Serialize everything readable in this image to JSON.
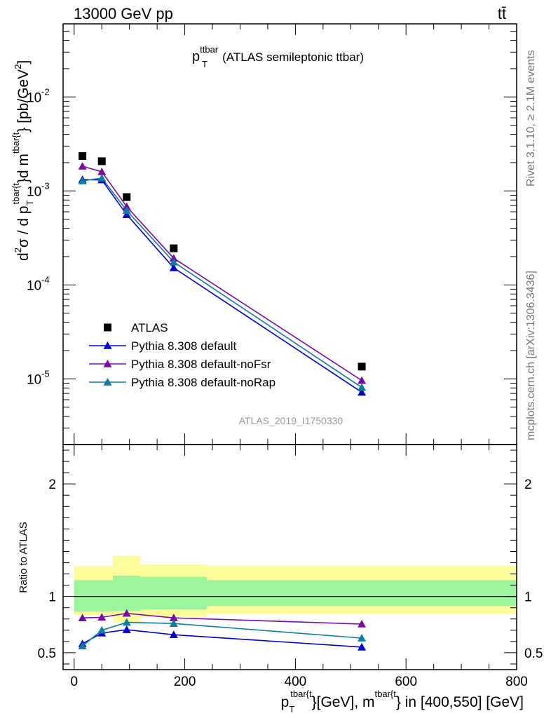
{
  "header": {
    "energy_label": "13000 GeV pp",
    "process_label": "tt̄"
  },
  "side_labels": {
    "rivet": "Rivet 3.1.10, ≥ 2.1M events",
    "mcplots": "mcplots.cern.ch [arXiv:1306.3436]"
  },
  "plot_title": {
    "main": "p",
    "sub": "T",
    "sup": "ttbar",
    "rest": "(ATLAS semileptonic ttbar)"
  },
  "analysis_label": "ATLAS_2019_I1750330",
  "ylabel_main": {
    "p1": "d",
    "p1sup": "2",
    "p2": "σ / d p",
    "p2sub": "T",
    "p2sup": "tbar{t",
    "p3": "}d m",
    "p3sup": "tbar{t",
    "p4": "} [pb/GeV",
    "p4sup": "2",
    "p5": "]"
  },
  "ylabel_ratio": "Ratio to ATLAS",
  "xlabel": {
    "p1": "p",
    "p1sub": "T",
    "p1sup": "tbar{t",
    "p2": "}[GeV], m",
    "p2sup": "tbar{t",
    "p3": "} in [400,550] [GeV]"
  },
  "legend": [
    {
      "name": "ATLAS",
      "color": "#000000",
      "marker": "square"
    },
    {
      "name": "Pythia 8.308 default",
      "color": "#0000cc",
      "marker": "triangle"
    },
    {
      "name": "Pythia 8.308 default-noFsr",
      "color": "#7a0aa8",
      "marker": "triangle"
    },
    {
      "name": "Pythia 8.308 default-noRap",
      "color": "#0a7ea0",
      "marker": "triangle"
    }
  ],
  "chart_data": [
    {
      "type": "scatter",
      "yscale": "log",
      "xlim": [
        -20,
        800
      ],
      "ylim": [
        2e-06,
        0.06
      ],
      "y_ticks": [
        {
          "label": "10",
          "exp": "-5",
          "value": 1e-05
        },
        {
          "label": "10",
          "exp": "-4",
          "value": 0.0001
        },
        {
          "label": "10",
          "exp": "-3",
          "value": 0.001
        },
        {
          "label": "10",
          "exp": "-2",
          "value": 0.01
        }
      ],
      "x": [
        15,
        50,
        95,
        180,
        520
      ],
      "series": [
        {
          "name": "ATLAS",
          "color": "#000000",
          "marker": "square",
          "values": [
            0.00235,
            0.00207,
            0.00086,
            0.000245,
            1.35e-05
          ]
        },
        {
          "name": "Pythia 8.308 default",
          "color": "#0000cc",
          "marker": "triangle",
          "values": [
            0.00132,
            0.00131,
            0.00056,
            0.000152,
            7.2e-06
          ]
        },
        {
          "name": "Pythia 8.308 default-noFsr",
          "color": "#7a0aa8",
          "marker": "triangle",
          "values": [
            0.00183,
            0.0016,
            0.00068,
            0.000192,
            9.6e-06
          ]
        },
        {
          "name": "Pythia 8.308 default-noRap",
          "color": "#0a7ea0",
          "marker": "triangle",
          "values": [
            0.00128,
            0.00137,
            0.00062,
            0.000175,
            8.1e-06
          ]
        }
      ]
    },
    {
      "type": "line",
      "xlim": [
        -20,
        800
      ],
      "ylim": [
        0.35,
        2.35
      ],
      "y_ticks": [
        0.5,
        1,
        2
      ],
      "x_ticks": [
        0,
        200,
        400,
        600,
        800
      ],
      "reference": 1,
      "x": [
        15,
        50,
        95,
        180,
        520
      ],
      "uncertainty_bins": [
        {
          "x0": 0,
          "x1": 70,
          "inner": [
            0.865,
            1.145
          ],
          "outer": [
            0.835,
            1.27
          ]
        },
        {
          "x0": 70,
          "x1": 120,
          "inner": [
            0.87,
            1.185
          ],
          "outer": [
            0.77,
            1.36
          ]
        },
        {
          "x0": 120,
          "x1": 240,
          "inner": [
            0.885,
            1.175
          ],
          "outer": [
            0.82,
            1.285
          ]
        },
        {
          "x0": 240,
          "x1": 800,
          "inner": [
            0.915,
            1.145
          ],
          "outer": [
            0.845,
            1.275
          ]
        }
      ],
      "uncertainty_colors": {
        "inner": "#9cf59c",
        "outer": "#fdfd9c"
      },
      "series": [
        {
          "name": "Pythia 8.308 default",
          "color": "#0000cc",
          "values": [
            0.58,
            0.675,
            0.705,
            0.66,
            0.55
          ]
        },
        {
          "name": "Pythia 8.308 default-noFsr",
          "color": "#7a0aa8",
          "values": [
            0.81,
            0.815,
            0.85,
            0.81,
            0.755
          ]
        },
        {
          "name": "Pythia 8.308 default-noRap",
          "color": "#0a7ea0",
          "values": [
            0.56,
            0.7,
            0.77,
            0.76,
            0.63
          ]
        }
      ]
    }
  ]
}
